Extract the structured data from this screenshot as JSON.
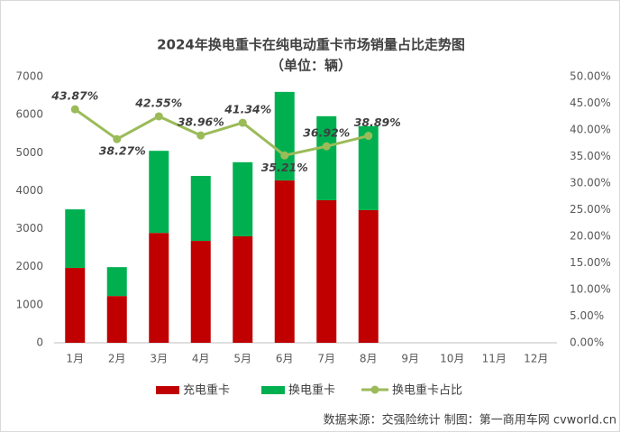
{
  "chart_data": {
    "type": "bar",
    "title": "2024年换电重卡在纯电动重卡市场销量占比走势图",
    "subtitle": "（单位：辆）",
    "categories": [
      "1月",
      "2月",
      "3月",
      "4月",
      "5月",
      "6月",
      "7月",
      "8月",
      "9月",
      "10月",
      "11月",
      "12月"
    ],
    "series": [
      {
        "name": "充电重卡",
        "color": "#c00000",
        "type": "bar",
        "values": [
          1970,
          1230,
          2890,
          2680,
          2800,
          4270,
          3750,
          3490,
          null,
          null,
          null,
          null
        ]
      },
      {
        "name": "换电重卡",
        "color": "#00b050",
        "type": "bar",
        "values": [
          1540,
          760,
          2160,
          1710,
          1950,
          2330,
          2210,
          2210,
          null,
          null,
          null,
          null
        ]
      },
      {
        "name": "换电重卡占比",
        "color": "#9bbb59",
        "type": "line",
        "axis": "y2",
        "values": [
          43.87,
          38.27,
          42.55,
          38.96,
          41.34,
          35.21,
          36.92,
          38.89,
          null,
          null,
          null,
          null
        ],
        "value_labels": [
          "43.87%",
          "38.27%",
          "42.55%",
          "38.96%",
          "41.34%",
          "35.21%",
          "36.92%",
          "38.89%",
          null,
          null,
          null,
          null
        ]
      }
    ],
    "ylim": [
      0,
      7000
    ],
    "yticks": [
      0,
      1000,
      2000,
      3000,
      4000,
      5000,
      6000,
      7000
    ],
    "y2lim": [
      0,
      50
    ],
    "y2ticks": [
      {
        "value": 0,
        "label": "0.00%"
      },
      {
        "value": 5,
        "label": "5.00%"
      },
      {
        "value": 10,
        "label": "10.00%"
      },
      {
        "value": 15,
        "label": "15.00%"
      },
      {
        "value": 20,
        "label": "20.00%"
      },
      {
        "value": 25,
        "label": "25.00%"
      },
      {
        "value": 30,
        "label": "30.00%"
      },
      {
        "value": 35,
        "label": "35.00%"
      },
      {
        "value": 40,
        "label": "40.00%"
      },
      {
        "value": 45,
        "label": "45.00%"
      },
      {
        "value": 50,
        "label": "50.00%"
      }
    ],
    "grid": false,
    "legend": "bottom",
    "source": "数据来源：交强险统计  制图：第一商用车网 cvworld.cn"
  }
}
